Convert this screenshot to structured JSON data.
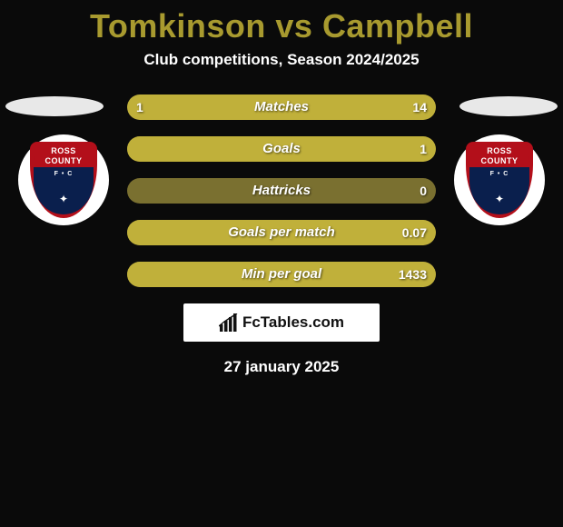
{
  "title": {
    "player_a": "Tomkinson",
    "vs": "vs",
    "player_b": "Campbell",
    "color": "#a89a2f"
  },
  "subtitle": "Club competitions, Season 2024/2025",
  "colors": {
    "background": "#0a0a0a",
    "bar_track": "#7a7030",
    "fill_a": "#c0b03a",
    "fill_b": "#c0b03a",
    "ellipse": "#e8e8e8",
    "crest_outer": "#b30f1a",
    "crest_inner": "#0a1f4d"
  },
  "crest": {
    "line1": "ROSS",
    "line2": "COUNTY",
    "fc": "F • C",
    "stag": "✦"
  },
  "stats": [
    {
      "label": "Matches",
      "a": "1",
      "b": "14",
      "a_num": 1,
      "b_num": 14,
      "a_pct": 7,
      "b_pct": 93
    },
    {
      "label": "Goals",
      "a": "",
      "b": "1",
      "a_num": 0,
      "b_num": 1,
      "a_pct": 0,
      "b_pct": 100
    },
    {
      "label": "Hattricks",
      "a": "",
      "b": "0",
      "a_num": 0,
      "b_num": 0,
      "a_pct": 0,
      "b_pct": 0
    },
    {
      "label": "Goals per match",
      "a": "",
      "b": "0.07",
      "a_num": 0,
      "b_num": 0.07,
      "a_pct": 0,
      "b_pct": 100
    },
    {
      "label": "Min per goal",
      "a": "",
      "b": "1433",
      "a_num": 0,
      "b_num": 1433,
      "a_pct": 0,
      "b_pct": 100
    }
  ],
  "brand": "FcTables.com",
  "date": "27 january 2025"
}
